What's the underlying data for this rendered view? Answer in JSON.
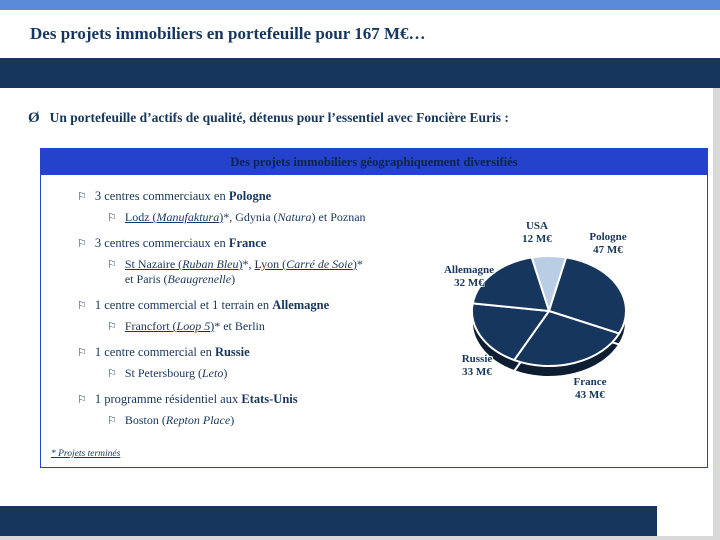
{
  "colors": {
    "navy": "#17365D",
    "header_blue": "#2442CC",
    "top_bar_blue": "#5B8AD8",
    "edge_gray": "#D9D9D9",
    "slice_dark": "#17365D",
    "slice_light": "#B9CDE5"
  },
  "slide": {
    "title": "Des projets immobiliers en portefeuille pour 167 M€…",
    "bullet_char": "Ø",
    "intro": "Un portefeuille d’actifs de qualité, détenus pour l’essentiel avec Foncière Euris :",
    "box_title": "Des projets immobiliers géographiquement diversifiés",
    "flag_char": "⚐",
    "footnote": "* Projets terminés",
    "list": [
      {
        "main": [
          {
            "t": "3 centres commerciaux en "
          },
          {
            "t": "Pologne",
            "b": true
          }
        ],
        "sub": [
          {
            "t": "Lodz (",
            "u": true
          },
          {
            "t": "Manufaktura",
            "u": true,
            "i": true
          },
          {
            "t": ")",
            "u": true
          },
          {
            "t": "*, Gdynia ("
          },
          {
            "t": "Natura",
            "i": true
          },
          {
            "t": ") et Poznan"
          }
        ]
      },
      {
        "main": [
          {
            "t": "3 centres commerciaux en "
          },
          {
            "t": "France",
            "b": true
          }
        ],
        "sub": [
          {
            "t": "St Nazaire (",
            "u": true
          },
          {
            "t": "Ruban Bleu",
            "u": true,
            "i": true
          },
          {
            "t": ")",
            "u": true
          },
          {
            "t": "*, "
          },
          {
            "t": "Lyon (",
            "u": true
          },
          {
            "t": "Carré de Soie",
            "u": true,
            "i": true
          },
          {
            "t": ")",
            "u": true
          },
          {
            "t": "*"
          },
          {
            "br": true
          },
          {
            "t": "et Paris ("
          },
          {
            "t": "Beaugrenelle",
            "i": true
          },
          {
            "t": ")"
          }
        ]
      },
      {
        "main": [
          {
            "t": "1 centre commercial et 1 terrain en "
          },
          {
            "t": "Allemagne",
            "b": true
          }
        ],
        "sub": [
          {
            "t": "Francfort (",
            "u": true
          },
          {
            "t": "Loop 5",
            "u": true,
            "i": true
          },
          {
            "t": ")",
            "u": true
          },
          {
            "t": "* et Berlin"
          }
        ]
      },
      {
        "main": [
          {
            "t": "1 centre commercial en "
          },
          {
            "t": "Russie",
            "b": true
          }
        ],
        "sub": [
          {
            "t": "St Petersbourg ("
          },
          {
            "t": "Leto",
            "i": true
          },
          {
            "t": ")"
          }
        ]
      },
      {
        "main": [
          {
            "t": "1 programme résidentiel aux "
          },
          {
            "t": "Etats-Unis",
            "b": true
          }
        ],
        "sub": [
          {
            "t": "Boston ("
          },
          {
            "t": "Repton Place",
            "i": true
          },
          {
            "t": ")"
          }
        ]
      }
    ]
  },
  "chart_data": {
    "type": "pie",
    "unit": "M€",
    "total": 167,
    "start_angle_deg": -103,
    "legend": "none",
    "slices": [
      {
        "label": "USA",
        "value": 12,
        "value_label": "12 M€",
        "color": "#B9CDE5"
      },
      {
        "label": "Pologne",
        "value": 47,
        "value_label": "47 M€",
        "color": "#17365D"
      },
      {
        "label": "France",
        "value": 43,
        "value_label": "43 M€",
        "color": "#17365D"
      },
      {
        "label": "Russie",
        "value": 33,
        "value_label": "33 M€",
        "color": "#17365D"
      },
      {
        "label": "Allemagne",
        "value": 32,
        "value_label": "32 M€",
        "color": "#17365D"
      }
    ]
  }
}
